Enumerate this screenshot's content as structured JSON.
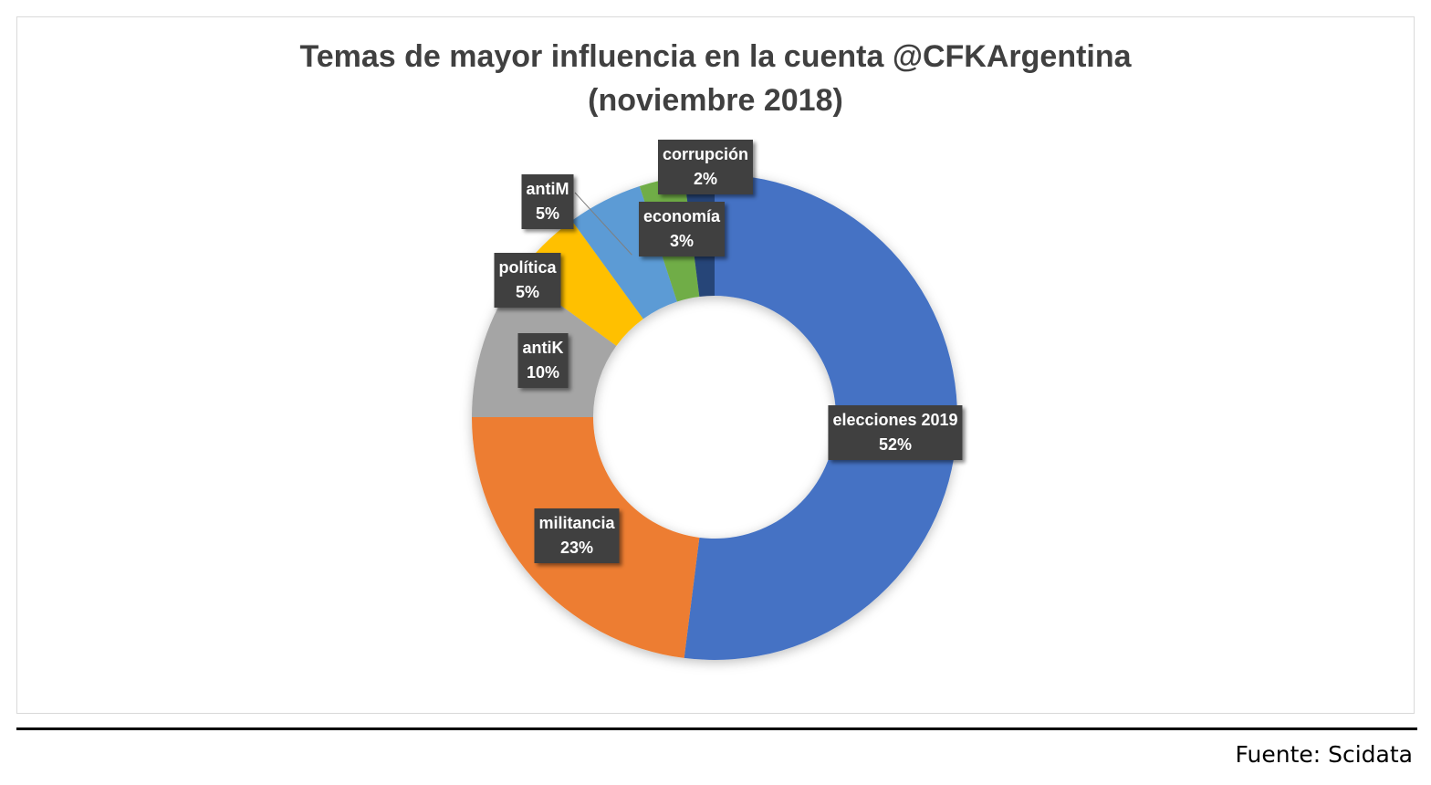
{
  "title_line1": "Temas de mayor influencia en la cuenta @CFKArgentina",
  "title_line2": "(noviembre 2018)",
  "source": "Fuente: Scidata",
  "chart_data": {
    "type": "pie",
    "variant": "donut",
    "title": "Temas de mayor influencia en la cuenta @CFKArgentina (noviembre 2018)",
    "start_angle_deg": 0,
    "direction": "clockwise",
    "slices": [
      {
        "label": "elecciones 2019",
        "value": 52,
        "display": "52%",
        "color": "#4472C4"
      },
      {
        "label": "militancia",
        "value": 23,
        "display": "23%",
        "color": "#ED7D31"
      },
      {
        "label": "antiK",
        "value": 10,
        "display": "10%",
        "color": "#A5A5A5"
      },
      {
        "label": "política",
        "value": 5,
        "display": "5%",
        "color": "#FFC000"
      },
      {
        "label": "antiM",
        "value": 5,
        "display": "5%",
        "color": "#5B9BD5"
      },
      {
        "label": "economía",
        "value": 3,
        "display": "3%",
        "color": "#70AD47"
      },
      {
        "label": "corrupción",
        "value": 2,
        "display": "2%",
        "color": "#264478"
      }
    ],
    "legend": "none"
  }
}
